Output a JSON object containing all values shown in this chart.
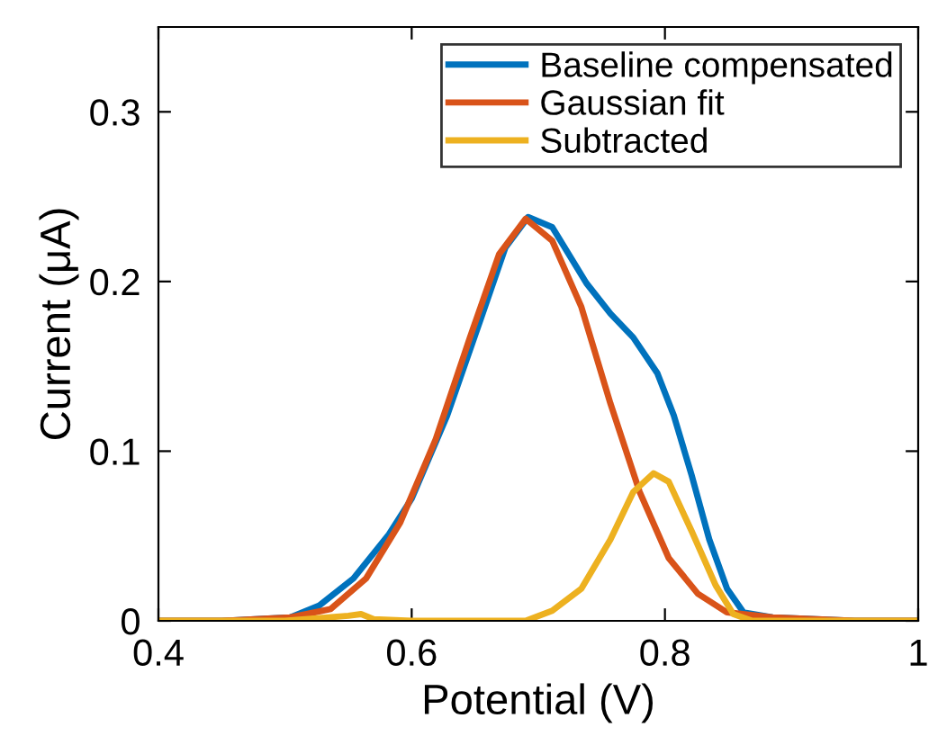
{
  "chart_data": {
    "type": "line",
    "xlabel": "Potential (V)",
    "ylabel": "Current (μA)",
    "xlim": [
      0.4,
      1
    ],
    "ylim": [
      0,
      0.35
    ],
    "xticks": [
      0.4,
      0.6,
      0.8,
      1
    ],
    "yticks": [
      0,
      0.1,
      0.2,
      0.3
    ],
    "grid": false,
    "legend": "top right",
    "line_style": "solid",
    "marker": "none",
    "series": [
      {
        "name": "Baseline compensated",
        "color": "#0072bd",
        "x": [
          0.4,
          0.45,
          0.504,
          0.527,
          0.554,
          0.582,
          0.6,
          0.628,
          0.656,
          0.674,
          0.692,
          0.711,
          0.738,
          0.757,
          0.775,
          0.794,
          0.807,
          0.821,
          0.835,
          0.849,
          0.862,
          0.885,
          0.95,
          1.0
        ],
        "values": [
          0,
          0,
          0.002,
          0.009,
          0.025,
          0.051,
          0.072,
          0.121,
          0.181,
          0.22,
          0.238,
          0.232,
          0.199,
          0.181,
          0.167,
          0.146,
          0.121,
          0.086,
          0.048,
          0.019,
          0.005,
          0.002,
          0,
          0
        ]
      },
      {
        "name": "Gaussian fit",
        "color": "#d95319",
        "x": [
          0.4,
          0.45,
          0.504,
          0.536,
          0.564,
          0.591,
          0.619,
          0.646,
          0.669,
          0.69,
          0.711,
          0.734,
          0.757,
          0.78,
          0.803,
          0.826,
          0.849,
          0.885,
          0.95,
          1.0
        ],
        "values": [
          0,
          0,
          0.002,
          0.007,
          0.025,
          0.058,
          0.107,
          0.167,
          0.216,
          0.237,
          0.224,
          0.185,
          0.128,
          0.076,
          0.037,
          0.016,
          0.005,
          0.002,
          0,
          0
        ]
      },
      {
        "name": "Subtracted",
        "color": "#edb120",
        "x": [
          0.4,
          0.5,
          0.55,
          0.56,
          0.57,
          0.6,
          0.69,
          0.711,
          0.734,
          0.757,
          0.775,
          0.791,
          0.803,
          0.821,
          0.84,
          0.854,
          0.869,
          0.95,
          1.0
        ],
        "values": [
          0,
          0,
          0.003,
          0.004,
          0.001,
          0,
          0,
          0.006,
          0.019,
          0.048,
          0.076,
          0.087,
          0.082,
          0.053,
          0.021,
          0.004,
          0,
          0,
          0
        ]
      }
    ]
  }
}
